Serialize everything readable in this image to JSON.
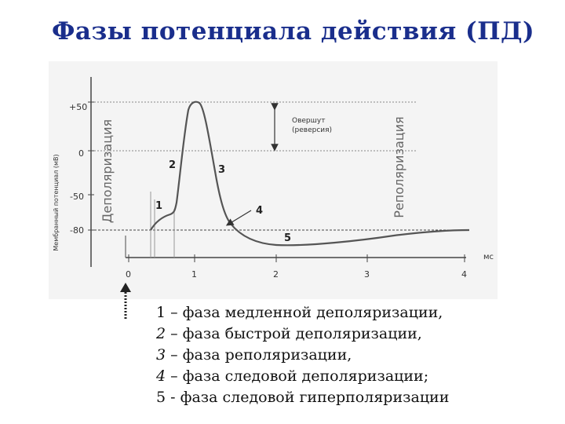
{
  "title": "Фазы потенциала действия (ПД)",
  "diagram": {
    "y_axis_label": "Мембранный потенциал (мВ)",
    "y_ticks": [
      "+50",
      "0",
      "-50",
      "-80"
    ],
    "x_unit": "мс",
    "x_ticks": [
      "0",
      "1",
      "2",
      "3",
      "4"
    ],
    "left_vertical_label": "Деполяризация",
    "right_vertical_label": "Реполяризация",
    "overshoot_label_line1": "Овершут",
    "overshoot_label_line2": "(реверсия)",
    "phase_markers": [
      "1",
      "2",
      "3",
      "4",
      "5"
    ],
    "colors": {
      "curve": "#555555",
      "axis": "#444444",
      "grid": "#888888",
      "title": "#1a2e8c"
    }
  },
  "legend": [
    {
      "num": "1",
      "text": " – фаза медленной деполяризации,",
      "italic": false
    },
    {
      "num": "2",
      "text": " – фаза быстрой деполяризации,",
      "italic": true
    },
    {
      "num": "3",
      "text": " – фаза реполяризации,",
      "italic": true
    },
    {
      "num": "4",
      "text": " – фаза следовой деполяризации;",
      "italic": true
    },
    {
      "num": "5",
      "text": " - фаза следовой гиперполяризации",
      "italic": false
    }
  ]
}
